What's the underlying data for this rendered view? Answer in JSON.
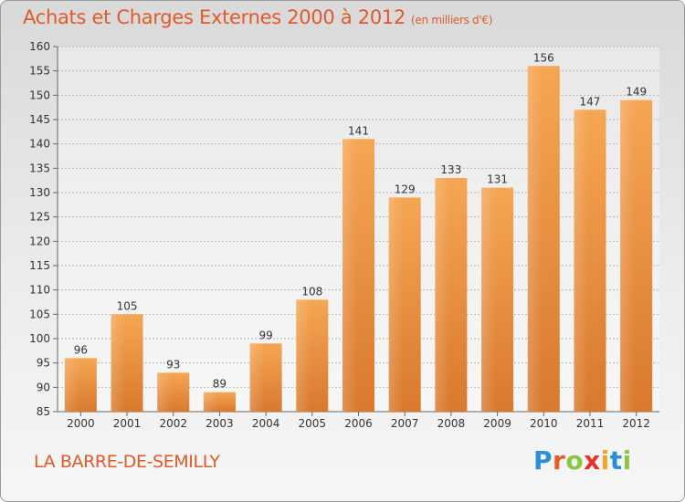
{
  "header": {
    "title": "Achats et Charges Externes 2000 à 2012",
    "subtitle": "(en milliers d'€)"
  },
  "footer": {
    "city": "LA BARRE-DE-SEMILLY",
    "logo_letters": [
      "P",
      "r",
      "o",
      "x",
      "i",
      "t",
      "i"
    ],
    "logo_colors": [
      "#2a8fd6",
      "#e85a28",
      "#8cc63f",
      "#e8322a",
      "#f5a623",
      "#2a8fd6",
      "#8cc63f"
    ]
  },
  "colors": {
    "bar_light": "#f5a653",
    "bar_dark": "#d9792e",
    "accent": "#e05a2a"
  },
  "chart_data": {
    "type": "bar",
    "categories": [
      "2000",
      "2001",
      "2002",
      "2003",
      "2004",
      "2005",
      "2006",
      "2007",
      "2008",
      "2009",
      "2010",
      "2011",
      "2012"
    ],
    "values": [
      96,
      105,
      93,
      89,
      99,
      108,
      141,
      129,
      133,
      131,
      156,
      147,
      149
    ],
    "title": "Achats et Charges Externes 2000 à 2012",
    "ylim": [
      85,
      160
    ],
    "yticks": [
      85,
      90,
      95,
      100,
      105,
      110,
      115,
      120,
      125,
      130,
      135,
      140,
      145,
      150,
      155,
      160
    ],
    "grid": true
  }
}
